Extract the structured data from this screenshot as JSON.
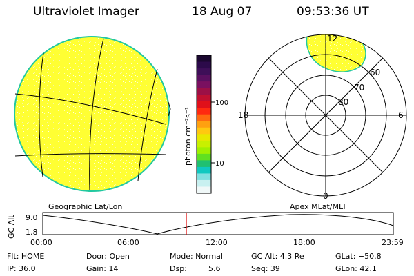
{
  "header": {
    "instrument": "Ultraviolet Imager",
    "date": "18 Aug 07",
    "time": "09:53:36 UT"
  },
  "colorbar": {
    "unit_label": "photon cm⁻²s⁻¹",
    "tick_labels": [
      "100",
      "10"
    ],
    "colors": [
      "#1b0830",
      "#2c0a4a",
      "#3e0f58",
      "#5a1060",
      "#7a1060",
      "#9c1046",
      "#c01030",
      "#e0101a",
      "#ff2a10",
      "#ff6a10",
      "#ffa010",
      "#ffc810",
      "#e8e800",
      "#c8f000",
      "#a0f000",
      "#60e020",
      "#20c070",
      "#10c8c0",
      "#80e0e0",
      "#c8f0f0",
      "#f0f8f8"
    ]
  },
  "left_panel": {
    "caption": "Geographic Lat/Lon",
    "disk_color": "#ffff33",
    "rim_color": "#22c8a0"
  },
  "right_panel": {
    "caption": "Apex MLat/MLT",
    "mlt_labels": {
      "top": "12",
      "left": "18",
      "right": "6",
      "bottom": "0"
    },
    "lat_labels": [
      "60",
      "70",
      "80"
    ]
  },
  "altitude_plot": {
    "ylabel": "GC Alt",
    "yticks": [
      "9.0",
      "1.8"
    ],
    "xticks": [
      "00:00",
      "06:00",
      "12:00",
      "18:00",
      "23:59"
    ],
    "marker_color": "#dd0000"
  },
  "info": {
    "flt": "Flt: HOME",
    "ip": "IP: 36.0",
    "door": "Door: Open",
    "gain": "Gain: 14",
    "mode": "Mode: Normal",
    "dsp_label": "Dsp:",
    "dsp_value": "5.6",
    "gcalt": "GC Alt: 4.3 Re",
    "seq": "Seq: 39",
    "glat": "GLat: −50.8",
    "glon": "GLon:  42.1"
  }
}
